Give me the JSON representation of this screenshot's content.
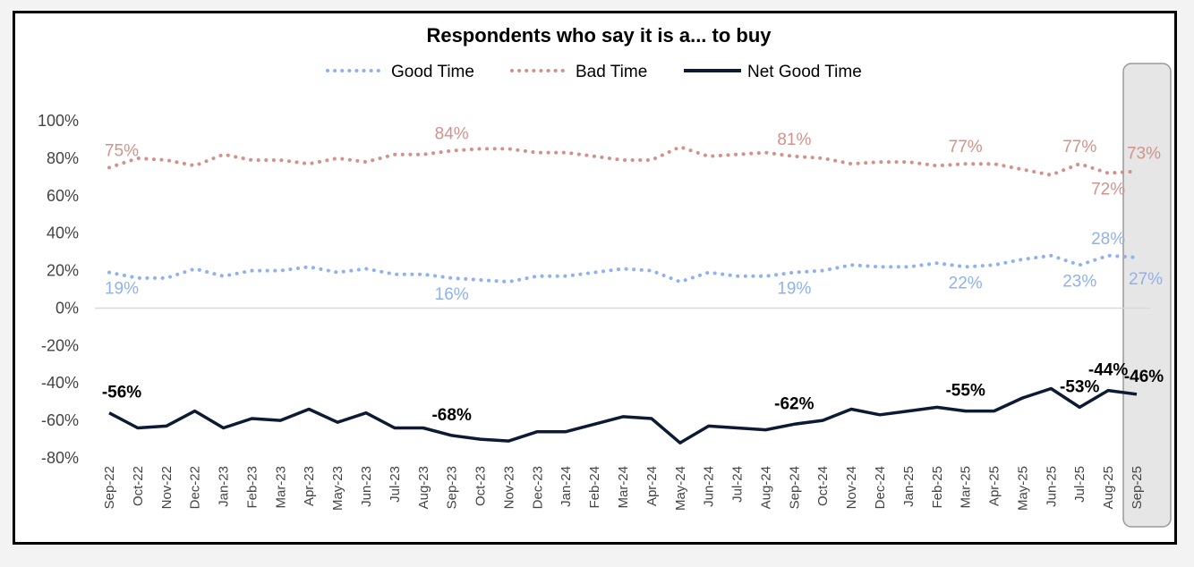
{
  "chart_data": {
    "type": "line",
    "title": "Respondents who say it is a... to buy",
    "categories": [
      "Sep-22",
      "Oct-22",
      "Nov-22",
      "Dec-22",
      "Jan-23",
      "Feb-23",
      "Mar-23",
      "Apr-23",
      "May-23",
      "Jun-23",
      "Jul-23",
      "Aug-23",
      "Sep-23",
      "Oct-23",
      "Nov-23",
      "Dec-23",
      "Jan-24",
      "Feb-24",
      "Mar-24",
      "Apr-24",
      "May-24",
      "Jun-24",
      "Jul-24",
      "Aug-24",
      "Sep-24",
      "Oct-24",
      "Nov-24",
      "Dec-24",
      "Jan-25",
      "Feb-25",
      "Mar-25",
      "Apr-25",
      "May-25",
      "Jun-25",
      "Jul-25",
      "Aug-25",
      "Sep-25"
    ],
    "ylim": [
      -80,
      100
    ],
    "yticks": [
      "100%",
      "80%",
      "60%",
      "40%",
      "20%",
      "0%",
      "-20%",
      "-40%",
      "-60%",
      "-80%"
    ],
    "ytick_values": [
      100,
      80,
      60,
      40,
      20,
      0,
      -20,
      -40,
      -60,
      -80
    ],
    "highlight_category": "Sep-25",
    "series": [
      {
        "name": "Good Time",
        "color": "#8fb1ef",
        "style": "dotted",
        "values": [
          19,
          16,
          16,
          21,
          17,
          20,
          20,
          22,
          19,
          21,
          18,
          18,
          16,
          15,
          14,
          17,
          17,
          19,
          21,
          20,
          14,
          19,
          17,
          17,
          19,
          20,
          23,
          22,
          22,
          24,
          22,
          23,
          26,
          28,
          23,
          28,
          27
        ],
        "labels": [
          {
            "index": 0,
            "text": "19%",
            "pos": "below"
          },
          {
            "index": 12,
            "text": "16%",
            "pos": "below"
          },
          {
            "index": 24,
            "text": "19%",
            "pos": "below"
          },
          {
            "index": 30,
            "text": "22%",
            "pos": "below"
          },
          {
            "index": 34,
            "text": "23%",
            "pos": "below"
          },
          {
            "index": 35,
            "text": "28%",
            "pos": "above"
          },
          {
            "index": 36,
            "text": "27%",
            "pos": "below-right"
          }
        ]
      },
      {
        "name": "Bad Time",
        "color": "#d4918a",
        "style": "dotted",
        "values": [
          75,
          80,
          79,
          76,
          82,
          79,
          79,
          77,
          80,
          78,
          82,
          82,
          84,
          85,
          85,
          83,
          83,
          81,
          79,
          79,
          86,
          81,
          82,
          83,
          81,
          80,
          77,
          78,
          78,
          76,
          77,
          77,
          74,
          71,
          77,
          72,
          73
        ],
        "labels": [
          {
            "index": 0,
            "text": "75%",
            "pos": "above"
          },
          {
            "index": 12,
            "text": "84%",
            "pos": "above"
          },
          {
            "index": 24,
            "text": "81%",
            "pos": "above"
          },
          {
            "index": 30,
            "text": "77%",
            "pos": "above"
          },
          {
            "index": 34,
            "text": "77%",
            "pos": "above"
          },
          {
            "index": 35,
            "text": "72%",
            "pos": "below"
          },
          {
            "index": 36,
            "text": "73%",
            "pos": "above-right"
          }
        ]
      },
      {
        "name": "Net Good Time",
        "color": "#0d1a33",
        "style": "solid",
        "values": [
          -56,
          -64,
          -63,
          -55,
          -64,
          -59,
          -60,
          -54,
          -61,
          -56,
          -64,
          -64,
          -68,
          -70,
          -71,
          -66,
          -66,
          -62,
          -58,
          -59,
          -72,
          -63,
          -64,
          -65,
          -62,
          -60,
          -54,
          -57,
          -55,
          -53,
          -55,
          -55,
          -48,
          -43,
          -53,
          -44,
          -46
        ],
        "labels": [
          {
            "index": 0,
            "text": "-56%",
            "pos": "above"
          },
          {
            "index": 12,
            "text": "-68%",
            "pos": "above"
          },
          {
            "index": 24,
            "text": "-62%",
            "pos": "above"
          },
          {
            "index": 30,
            "text": "-55%",
            "pos": "above"
          },
          {
            "index": 34,
            "text": "-53%",
            "pos": "above"
          },
          {
            "index": 35,
            "text": "-44%",
            "pos": "above"
          },
          {
            "index": 36,
            "text": "-46%",
            "pos": "above-right"
          }
        ]
      }
    ]
  }
}
